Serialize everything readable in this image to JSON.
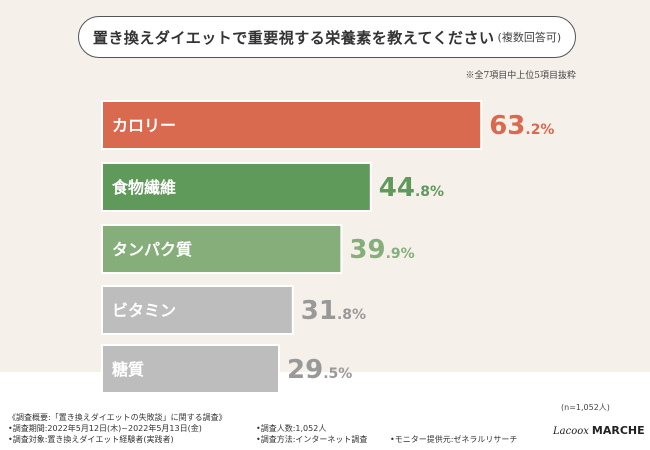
{
  "title": {
    "main": "置き換えダイエットで重要視する栄養素を教えてください",
    "sub": "(複数回答可)"
  },
  "note_top": "※全7項目中上位5項目抜粋",
  "chart_data": {
    "type": "bar",
    "orientation": "horizontal",
    "categories": [
      "カロリー",
      "食物繊維",
      "タンパク質",
      "ビタミン",
      "糖質"
    ],
    "values": [
      63.2,
      44.8,
      39.9,
      31.8,
      29.5
    ],
    "value_labels": [
      {
        "int": "63",
        "dec": ".2%"
      },
      {
        "int": "44",
        "dec": ".8%"
      },
      {
        "int": "39",
        "dec": ".9%"
      },
      {
        "int": "31",
        "dec": ".8%"
      },
      {
        "int": "29",
        "dec": ".5%"
      }
    ],
    "bar_colors": [
      "#d96a50",
      "#5f9a5a",
      "#85ae7b",
      "#bdbdbd",
      "#bdbdbd"
    ],
    "label_colors": [
      "#d96a50",
      "#5f9a5a",
      "#85ae7b",
      "#999999",
      "#999999"
    ],
    "xlim": [
      0,
      100
    ],
    "grid": false,
    "legend": "none"
  },
  "n_note": "(n=1,052人)",
  "footer": {
    "line1": "《調査概要:「置き換えダイエットの失敗談」に関する調査》",
    "period": "•調査期間:2022年5月12日(木)~2022年5月13日(金)",
    "count": "•調査人数:1,052人",
    "target": "•調査対象:置き換えダイエット経験者(実践者)",
    "method": "•調査方法:インターネット調査",
    "provider": "•モニター提供元:ゼネラルリサーチ"
  },
  "logo": {
    "script": "Lacoox",
    "name": "MARCHE"
  }
}
